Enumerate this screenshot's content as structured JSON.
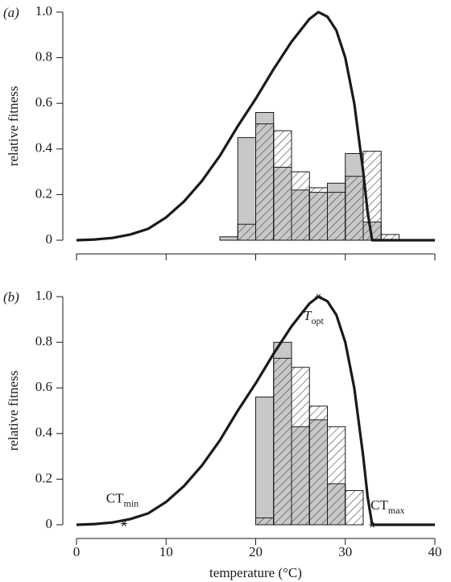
{
  "chart_data": [
    {
      "type": "line",
      "panel_label": "(a)",
      "ylabel": "relative fitness",
      "x": [
        0,
        2,
        4,
        6,
        8,
        10,
        12,
        14,
        16,
        18,
        20,
        22,
        24,
        26,
        27,
        28,
        29,
        30,
        31,
        32,
        32.5,
        33,
        34,
        36,
        38,
        40
      ],
      "values": [
        0,
        0.003,
        0.01,
        0.025,
        0.05,
        0.1,
        0.17,
        0.26,
        0.37,
        0.5,
        0.62,
        0.75,
        0.87,
        0.97,
        1.0,
        0.98,
        0.92,
        0.8,
        0.6,
        0.3,
        0.12,
        0,
        0,
        0,
        0,
        0
      ],
      "color": "#1a1a1a",
      "histogram": {
        "bins": [
          16,
          18,
          20,
          22,
          24,
          26,
          28,
          30,
          32,
          34,
          36
        ],
        "series": [
          {
            "color": "#c8c8c8",
            "values": [
              0.015,
              0.45,
              0.56,
              0.32,
              0.22,
              0.21,
              0.25,
              0.38,
              0.08,
              0
            ]
          },
          {
            "color": "#ffffff",
            "pattern": "hatch",
            "values": [
              0,
              0.07,
              0.51,
              0.48,
              0.3,
              0.23,
              0.21,
              0.28,
              0.39,
              0.025
            ]
          }
        ]
      },
      "xlim": [
        0,
        40
      ],
      "xticks": [
        0,
        10,
        20,
        30,
        40
      ],
      "xtick_labels": false,
      "ylim": [
        0,
        1
      ],
      "yticks": [
        0,
        0.2,
        0.4,
        0.6,
        0.8,
        {
          "value": 1,
          "label": "1.0"
        }
      ]
    },
    {
      "type": "line",
      "panel_label": "(b)",
      "ylabel": "relative fitness",
      "xlabel": "temperature (°C)",
      "x": [
        0,
        2,
        4,
        6,
        8,
        10,
        12,
        14,
        16,
        18,
        20,
        22,
        24,
        26,
        27,
        28,
        29,
        30,
        31,
        32,
        32.5,
        33,
        34,
        36,
        38,
        40
      ],
      "values": [
        0,
        0.003,
        0.01,
        0.025,
        0.05,
        0.1,
        0.17,
        0.26,
        0.37,
        0.5,
        0.62,
        0.75,
        0.87,
        0.97,
        1.0,
        0.98,
        0.92,
        0.8,
        0.6,
        0.3,
        0.12,
        0,
        0,
        0,
        0,
        0
      ],
      "color": "#1a1a1a",
      "histogram": {
        "bins": [
          20,
          22,
          24,
          26,
          28,
          30,
          32
        ],
        "series": [
          {
            "color": "#c8c8c8",
            "values": [
              0.56,
              0.8,
              0.43,
              0.46,
              0.18,
              0
            ]
          },
          {
            "color": "#ffffff",
            "pattern": "hatch",
            "values": [
              0.03,
              0.73,
              0.69,
              0.52,
              0.43,
              0.15
            ]
          }
        ]
      },
      "annotations": [
        {
          "text": "CT",
          "sub": "min",
          "x": 5.3,
          "y": 0.005,
          "position": "above"
        },
        {
          "text": "T",
          "sub": "opt",
          "x": 27,
          "y": 1.0,
          "position": "below",
          "italic": true
        },
        {
          "text": "CT",
          "sub": "max",
          "x": 33,
          "y": 0,
          "position": "above-right"
        }
      ],
      "xlim": [
        0,
        40
      ],
      "xticks": [
        0,
        10,
        20,
        30,
        40
      ],
      "xtick_labels": true,
      "ylim": [
        0,
        1
      ],
      "yticks": [
        0,
        0.2,
        0.4,
        0.6,
        0.8,
        {
          "value": 1,
          "label": "1.0"
        }
      ]
    }
  ]
}
